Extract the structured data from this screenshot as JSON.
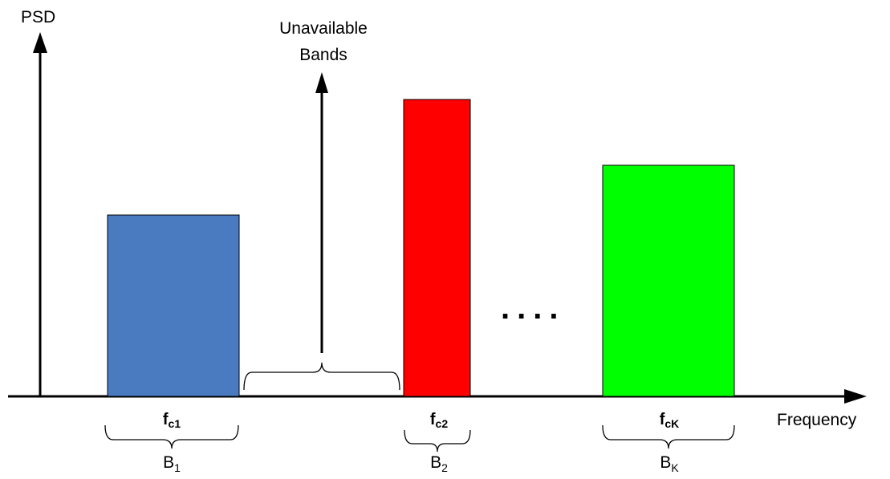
{
  "axes": {
    "y_label": "PSD",
    "x_label": "Frequency"
  },
  "annotation": {
    "line1": "Unavailable",
    "line2": "Bands"
  },
  "ellipsis": "....",
  "bands": [
    {
      "name": "band-1",
      "color": "#4a7abf",
      "center": {
        "main": "f",
        "sub": "c1"
      },
      "bandwidth": {
        "main": "B",
        "sub": "1"
      }
    },
    {
      "name": "band-2",
      "color": "#ff0000",
      "center": {
        "main": "f",
        "sub": "c2"
      },
      "bandwidth": {
        "main": "B",
        "sub": "2"
      }
    },
    {
      "name": "band-k",
      "color": "#00ff00",
      "center": {
        "main": "f",
        "sub": "cK"
      },
      "bandwidth": {
        "main": "B",
        "sub": "K"
      }
    }
  ]
}
